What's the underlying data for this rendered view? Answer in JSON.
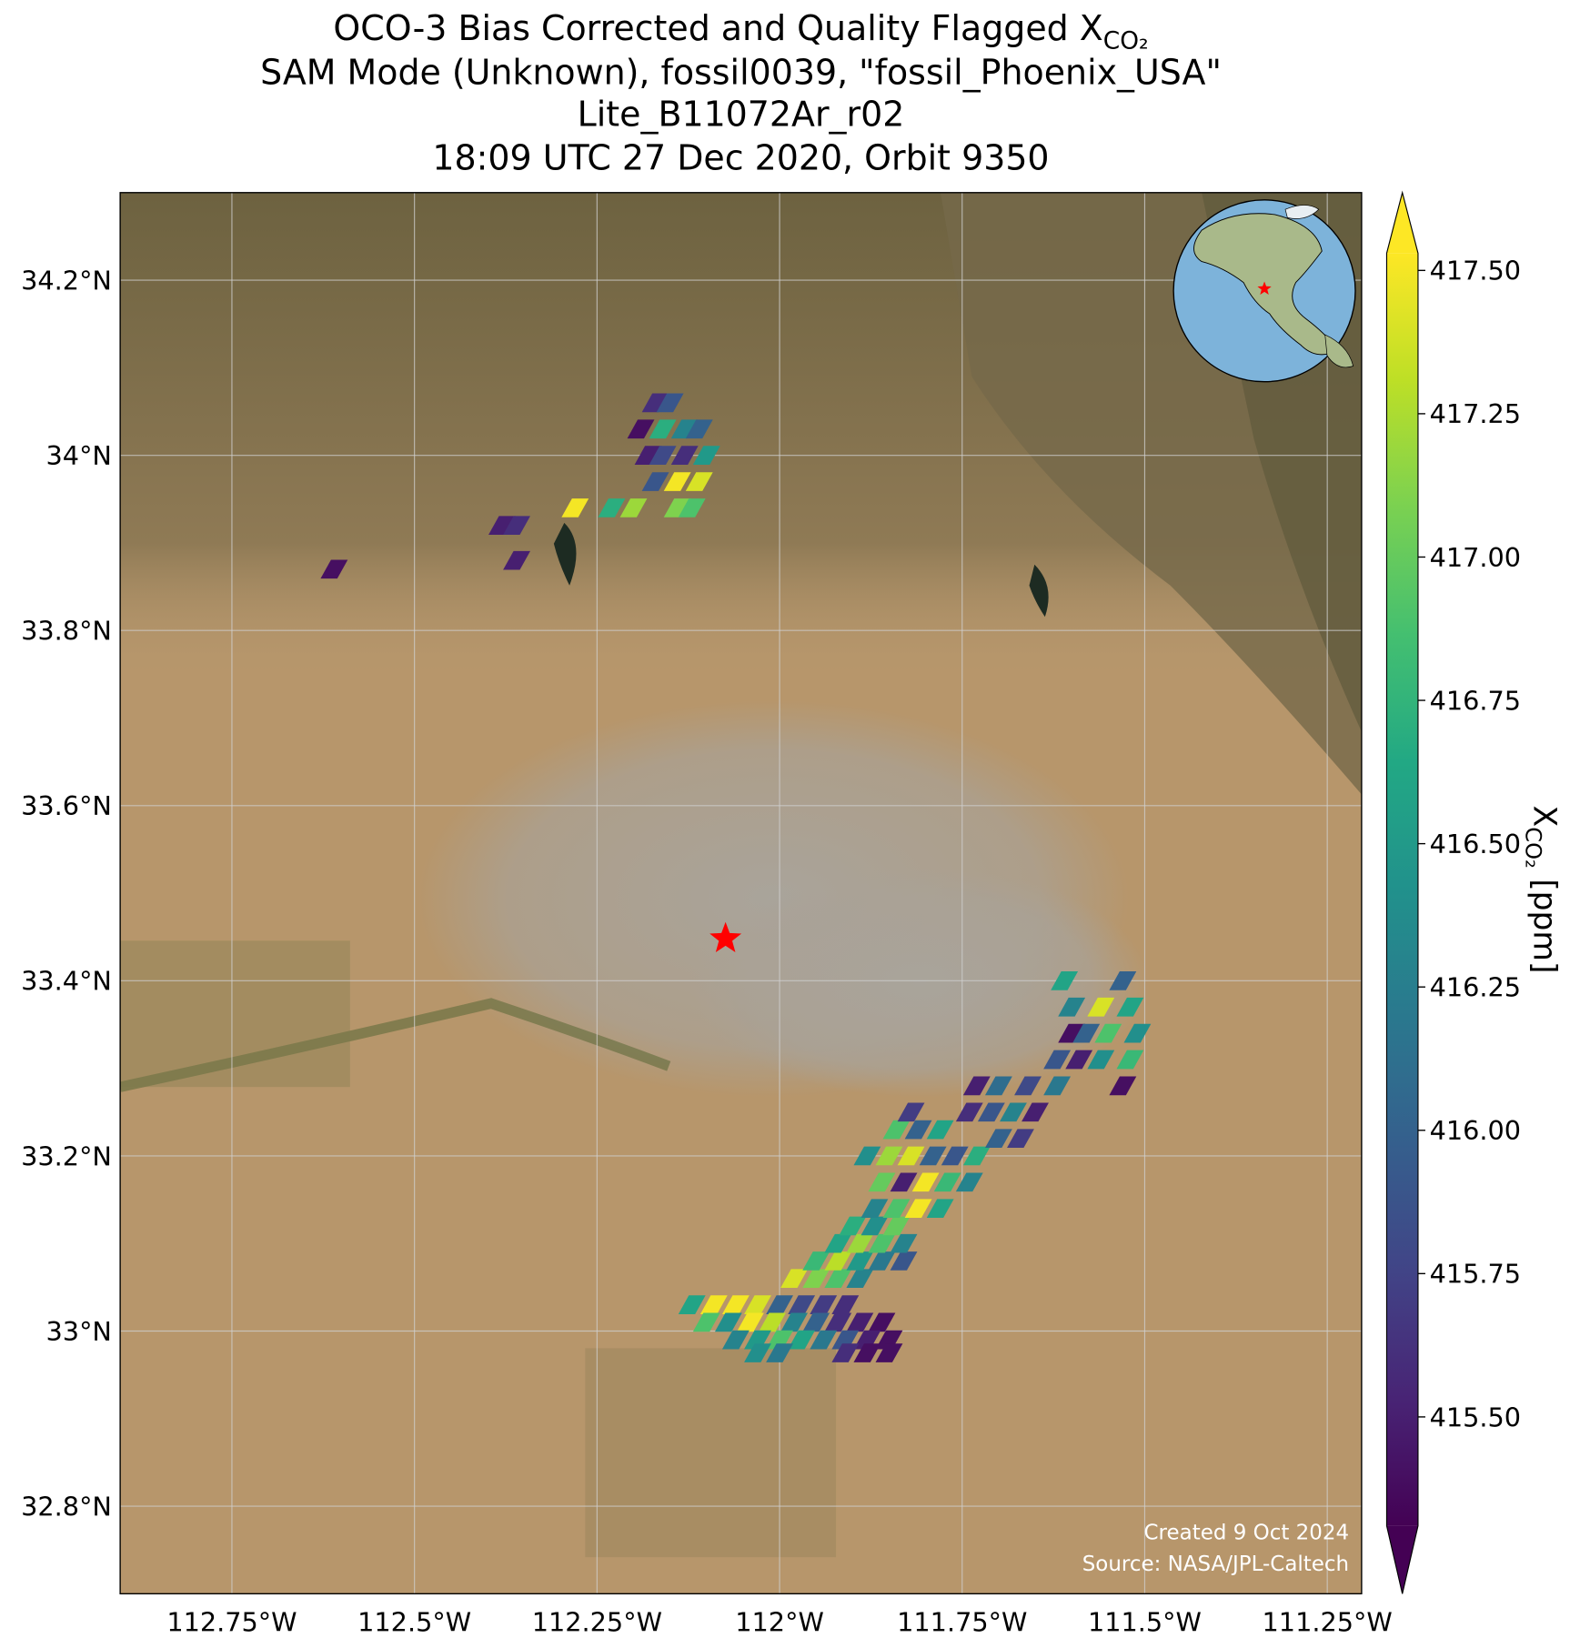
{
  "chart_data": {
    "type": "map",
    "title": {
      "lines": [
        {
          "text": "OCO-3 Bias Corrected and Quality Flagged X",
          "sub": "CO₂"
        },
        {
          "text": "SAM Mode (Unknown), fossil0039, \"fossil_Phoenix_USA\""
        },
        {
          "text": "Lite_B11072Ar_r02"
        },
        {
          "text": "18:09 UTC 27 Dec 2020, Orbit 9350"
        }
      ]
    },
    "xlim": [
      -112.903,
      -111.203
    ],
    "ylim": [
      32.7,
      34.3
    ],
    "xticks": [
      {
        "value": -112.75,
        "label": "112.75°W"
      },
      {
        "value": -112.5,
        "label": "112.5°W"
      },
      {
        "value": -112.25,
        "label": "112.25°W"
      },
      {
        "value": -112,
        "label": "112°W"
      },
      {
        "value": -111.75,
        "label": "111.75°W"
      },
      {
        "value": -111.5,
        "label": "111.5°W"
      },
      {
        "value": -111.25,
        "label": "111.25°W"
      }
    ],
    "yticks": [
      {
        "value": 32.8,
        "label": "32.8°N"
      },
      {
        "value": 33,
        "label": "33°N"
      },
      {
        "value": 33.2,
        "label": "33.2°N"
      },
      {
        "value": 33.4,
        "label": "33.4°N"
      },
      {
        "value": 33.6,
        "label": "33.6°N"
      },
      {
        "value": 33.8,
        "label": "33.8°N"
      },
      {
        "value": 34,
        "label": "34°N"
      },
      {
        "value": 34.2,
        "label": "34.2°N"
      }
    ],
    "grid": true,
    "soundings": {
      "lon": [
        -112.12,
        -112.09,
        -112.06,
        -112.03,
        -112.0,
        -111.97,
        -111.94,
        -111.91,
        -112.1,
        -112.07,
        -112.04,
        -112.01,
        -111.98,
        -111.95,
        -111.92,
        -111.89,
        -111.86,
        -112.06,
        -112.03,
        -112.0,
        -111.97,
        -111.94,
        -111.91,
        -111.88,
        -111.85,
        -112.03,
        -112.0,
        -111.91,
        -111.88,
        -111.85,
        -111.98,
        -111.95,
        -111.92,
        -111.89,
        -111.95,
        -111.92,
        -111.89,
        -111.86,
        -111.83,
        -111.92,
        -111.89,
        -111.86,
        -111.83,
        -111.9,
        -111.87,
        -111.84,
        -111.87,
        -111.84,
        -111.81,
        -111.78,
        -111.86,
        -111.83,
        -111.8,
        -111.77,
        -111.74,
        -111.88,
        -111.85,
        -111.82,
        -111.79,
        -111.76,
        -111.73,
        -111.84,
        -111.81,
        -111.78,
        -111.82,
        -111.7,
        -111.67,
        -111.74,
        -111.71,
        -111.68,
        -111.65,
        -111.73,
        -111.7,
        -111.66,
        -111.62,
        -111.62,
        -111.59,
        -111.6,
        -111.61,
        -111.53,
        -111.6,
        -111.56,
        -111.52,
        -111.58,
        -111.55,
        -111.51,
        -111.56,
        -111.52,
        -111.53,
        -112.17,
        -112.15,
        -112.19,
        -112.16,
        -112.13,
        -112.11,
        -112.18,
        -112.16,
        -112.13,
        -112.1,
        -112.17,
        -112.14,
        -112.11,
        -112.28,
        -112.23,
        -112.2,
        -112.14,
        -112.12,
        -112.38,
        -112.36,
        -112.36,
        -112.61
      ],
      "lat": [
        33.03,
        33.03,
        33.03,
        33.03,
        33.03,
        33.03,
        33.03,
        33.03,
        33.01,
        33.01,
        33.01,
        33.01,
        33.01,
        33.01,
        33.01,
        33.01,
        33.01,
        32.99,
        32.99,
        32.99,
        32.99,
        32.99,
        32.99,
        32.99,
        32.99,
        32.975,
        32.975,
        32.975,
        32.975,
        32.975,
        33.06,
        33.06,
        33.06,
        33.06,
        33.08,
        33.08,
        33.08,
        33.08,
        33.08,
        33.1,
        33.1,
        33.1,
        33.1,
        33.12,
        33.12,
        33.12,
        33.14,
        33.14,
        33.14,
        33.14,
        33.17,
        33.17,
        33.17,
        33.17,
        33.17,
        33.2,
        33.2,
        33.2,
        33.2,
        33.2,
        33.2,
        33.23,
        33.23,
        33.23,
        33.25,
        33.22,
        33.22,
        33.25,
        33.25,
        33.25,
        33.25,
        33.28,
        33.28,
        33.28,
        33.28,
        33.31,
        33.31,
        33.34,
        33.4,
        33.4,
        33.37,
        33.37,
        33.37,
        33.34,
        33.34,
        33.34,
        33.31,
        33.31,
        33.28,
        34.06,
        34.06,
        34.03,
        34.03,
        34.03,
        34.03,
        34.0,
        34.0,
        34.0,
        34.0,
        33.97,
        33.97,
        33.97,
        33.94,
        33.94,
        33.94,
        33.94,
        33.94,
        33.92,
        33.92,
        33.88,
        33.87
      ],
      "xco2": [
        416.6,
        417.5,
        417.5,
        417.4,
        416.0,
        415.8,
        415.7,
        415.6,
        416.9,
        416.4,
        417.5,
        417.3,
        416.3,
        416.0,
        415.6,
        415.5,
        415.4,
        416.3,
        416.5,
        416.9,
        416.6,
        416.2,
        415.9,
        415.5,
        415.4,
        416.4,
        416.2,
        415.6,
        415.4,
        415.4,
        417.4,
        417.1,
        416.9,
        416.3,
        416.8,
        417.3,
        416.5,
        416.2,
        415.9,
        416.6,
        417.2,
        416.9,
        416.3,
        416.7,
        416.4,
        417.0,
        416.3,
        416.9,
        417.5,
        416.6,
        417.0,
        415.5,
        417.5,
        416.8,
        416.3,
        416.4,
        417.2,
        417.4,
        416.0,
        415.9,
        416.7,
        416.9,
        416.0,
        416.6,
        415.7,
        416.0,
        415.7,
        415.6,
        415.9,
        416.3,
        415.5,
        415.5,
        416.1,
        415.8,
        416.2,
        415.9,
        415.5,
        415.4,
        416.6,
        416.0,
        416.3,
        417.4,
        416.6,
        416.0,
        416.9,
        416.4,
        416.4,
        416.8,
        415.4,
        415.6,
        415.9,
        415.4,
        416.7,
        416.3,
        416.0,
        415.5,
        415.8,
        415.6,
        416.5,
        415.9,
        417.5,
        417.4,
        417.5,
        416.7,
        417.2,
        417.1,
        416.9,
        415.5,
        415.6,
        415.5,
        415.4
      ]
    },
    "target": {
      "lon": -112.074,
      "lat": 33.448,
      "color": "#ff0000"
    },
    "colorbar": {
      "colormap": "viridis",
      "clim": [
        415.31,
        417.53
      ],
      "extend": "both",
      "label": {
        "text": "X",
        "sub": "CO₂",
        "unit": "[ppm]"
      },
      "ticks": [
        {
          "value": 415.5,
          "label": "415.50"
        },
        {
          "value": 415.75,
          "label": "415.75"
        },
        {
          "value": 416,
          "label": "416.00"
        },
        {
          "value": 416.25,
          "label": "416.25"
        },
        {
          "value": 416.5,
          "label": "416.50"
        },
        {
          "value": 416.75,
          "label": "416.75"
        },
        {
          "value": 417,
          "label": "417.00"
        },
        {
          "value": 417.25,
          "label": "417.25"
        },
        {
          "value": 417.5,
          "label": "417.50"
        }
      ]
    },
    "annotations": [
      "Created 9 Oct 2024",
      "Source: NASA/JPL-Caltech"
    ]
  }
}
